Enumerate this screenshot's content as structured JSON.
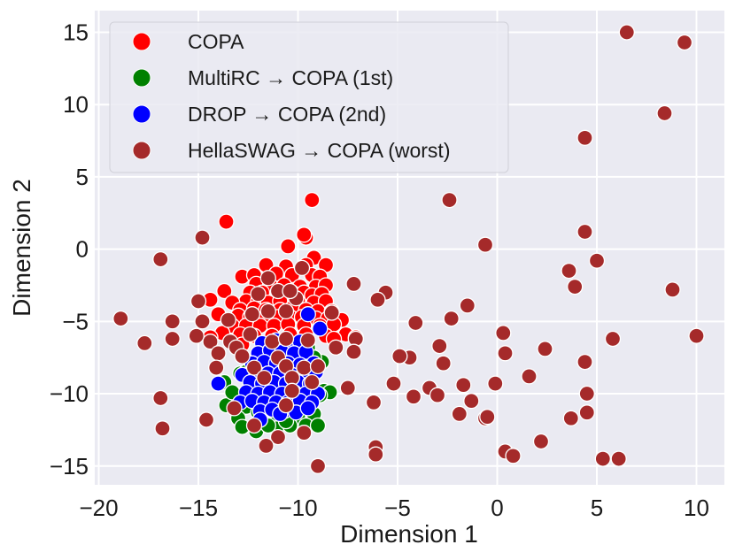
{
  "chart_data": {
    "type": "scatter",
    "title": "",
    "xlabel": "Dimension 1",
    "ylabel": "Dimension 2",
    "xlim": [
      -20.2,
      11.4
    ],
    "ylim": [
      -16.3,
      16.5
    ],
    "xticks": [
      -20,
      -15,
      -10,
      -5,
      0,
      5,
      10
    ],
    "yticks": [
      -15,
      -10,
      -5,
      0,
      5,
      10,
      15
    ],
    "xtick_labels": [
      "−20",
      "−15",
      "−10",
      "−5",
      "0",
      "5",
      "10"
    ],
    "ytick_labels": [
      "−15",
      "−10",
      "−5",
      "0",
      "5",
      "10",
      "15"
    ],
    "grid": true,
    "legend_position": "top-left",
    "series": [
      {
        "name": "COPA",
        "color": "#ff0000",
        "points": [
          [
            -9.3,
            3.4
          ],
          [
            -13.6,
            1.9
          ],
          [
            -9.6,
            0.8
          ],
          [
            -9.7,
            1.0
          ],
          [
            -10.5,
            0.2
          ],
          [
            -9.2,
            -0.6
          ],
          [
            -11.6,
            -1.1
          ],
          [
            -10.6,
            -1.2
          ],
          [
            -9.6,
            -1.1
          ],
          [
            -8.6,
            -1.1
          ],
          [
            -12.8,
            -1.9
          ],
          [
            -12.2,
            -1.8
          ],
          [
            -11.1,
            -1.7
          ],
          [
            -10.3,
            -1.8
          ],
          [
            -9.3,
            -1.8
          ],
          [
            -8.9,
            -1.9
          ],
          [
            -12.1,
            -2.4
          ],
          [
            -11.4,
            -2.5
          ],
          [
            -10.7,
            -2.5
          ],
          [
            -9.9,
            -2.6
          ],
          [
            -9.1,
            -2.6
          ],
          [
            -8.6,
            -2.5
          ],
          [
            -12.4,
            -3.0
          ],
          [
            -11.8,
            -3.0
          ],
          [
            -11.0,
            -3.1
          ],
          [
            -10.3,
            -3.0
          ],
          [
            -9.7,
            -3.0
          ],
          [
            -9.3,
            -3.2
          ],
          [
            -8.8,
            -3.1
          ],
          [
            -12.6,
            -3.6
          ],
          [
            -12.0,
            -3.6
          ],
          [
            -11.5,
            -3.7
          ],
          [
            -10.9,
            -3.6
          ],
          [
            -10.0,
            -3.6
          ],
          [
            -9.2,
            -3.7
          ],
          [
            -8.6,
            -3.6
          ],
          [
            -13.7,
            -2.9
          ],
          [
            -14.4,
            -3.5
          ],
          [
            -13.3,
            -3.7
          ],
          [
            -12.9,
            -4.2
          ],
          [
            -12.2,
            -4.1
          ],
          [
            -11.6,
            -4.2
          ],
          [
            -10.9,
            -4.2
          ],
          [
            -10.3,
            -4.1
          ],
          [
            -9.6,
            -4.2
          ],
          [
            -9.0,
            -4.3
          ],
          [
            -8.3,
            -4.3
          ],
          [
            -13.0,
            -4.6
          ],
          [
            -12.4,
            -4.7
          ],
          [
            -11.7,
            -4.8
          ],
          [
            -11.0,
            -4.7
          ],
          [
            -10.4,
            -4.7
          ],
          [
            -9.8,
            -4.7
          ],
          [
            -9.1,
            -4.8
          ],
          [
            -8.5,
            -4.8
          ],
          [
            -7.8,
            -4.9
          ],
          [
            -14.0,
            -4.5
          ],
          [
            -13.3,
            -5.3
          ],
          [
            -12.6,
            -5.3
          ],
          [
            -11.9,
            -5.3
          ],
          [
            -11.2,
            -5.3
          ],
          [
            -10.5,
            -5.2
          ],
          [
            -9.7,
            -5.3
          ],
          [
            -8.9,
            -5.3
          ],
          [
            -8.2,
            -5.2
          ],
          [
            -13.8,
            -5.8
          ],
          [
            -12.9,
            -5.9
          ],
          [
            -12.2,
            -6.0
          ],
          [
            -11.3,
            -6.0
          ],
          [
            -10.4,
            -5.9
          ],
          [
            -9.6,
            -5.9
          ],
          [
            -8.6,
            -6.0
          ],
          [
            -7.6,
            -5.9
          ],
          [
            -14.4,
            -6.1
          ],
          [
            -12.8,
            -6.6
          ],
          [
            -9.9,
            -6.6
          ],
          [
            -8.2,
            -6.2
          ],
          [
            -7.1,
            -6.1
          ]
        ]
      },
      {
        "name": "MultiRC → COPA (1st)",
        "color": "#008000",
        "points": [
          [
            -13.7,
            -9.2
          ],
          [
            -12.9,
            -8.6
          ],
          [
            -12.6,
            -8.5
          ],
          [
            -11.2,
            -7.4
          ],
          [
            -10.1,
            -7.1
          ],
          [
            -9.5,
            -6.8
          ],
          [
            -8.8,
            -7.8
          ],
          [
            -13.1,
            -10.1
          ],
          [
            -13.6,
            -10.8
          ],
          [
            -12.6,
            -10.9
          ],
          [
            -8.7,
            -9.8
          ],
          [
            -8.4,
            -9.9
          ],
          [
            -13.0,
            -11.7
          ],
          [
            -12.0,
            -11.3
          ],
          [
            -11.0,
            -11.5
          ],
          [
            -10.0,
            -11.6
          ],
          [
            -9.2,
            -11.4
          ],
          [
            -12.8,
            -12.3
          ],
          [
            -12.1,
            -12.6
          ],
          [
            -11.1,
            -12.4
          ],
          [
            -10.4,
            -12.2
          ],
          [
            -9.6,
            -12.2
          ],
          [
            -9.0,
            -12.2
          ],
          [
            -11.5,
            -12.2
          ],
          [
            -10.6,
            -11.9
          ],
          [
            -12.3,
            -9.3
          ],
          [
            -9.4,
            -8.6
          ],
          [
            -8.9,
            -10.1
          ],
          [
            -11.7,
            -8.1
          ],
          [
            -10.8,
            -8.0
          ],
          [
            -9.9,
            -7.7
          ],
          [
            -9.2,
            -7.5
          ],
          [
            -12.2,
            -8.6
          ],
          [
            -13.3,
            -9.9
          ]
        ]
      },
      {
        "name": "DROP → COPA (2nd)",
        "color": "#0000ff",
        "points": [
          [
            -9.5,
            -4.5
          ],
          [
            -8.9,
            -5.5
          ],
          [
            -11.8,
            -6.5
          ],
          [
            -11.1,
            -6.3
          ],
          [
            -10.5,
            -6.5
          ],
          [
            -9.9,
            -6.4
          ],
          [
            -12.0,
            -7.2
          ],
          [
            -11.4,
            -7.0
          ],
          [
            -10.8,
            -7.1
          ],
          [
            -10.2,
            -7.2
          ],
          [
            -9.6,
            -7.1
          ],
          [
            -12.3,
            -7.9
          ],
          [
            -11.7,
            -7.8
          ],
          [
            -11.1,
            -7.9
          ],
          [
            -10.5,
            -7.9
          ],
          [
            -9.9,
            -8.0
          ],
          [
            -9.2,
            -7.9
          ],
          [
            -12.8,
            -8.7
          ],
          [
            -12.1,
            -8.5
          ],
          [
            -11.5,
            -8.6
          ],
          [
            -10.9,
            -8.6
          ],
          [
            -10.3,
            -8.7
          ],
          [
            -9.7,
            -8.6
          ],
          [
            -9.1,
            -8.5
          ],
          [
            -14.0,
            -9.3
          ],
          [
            -12.4,
            -9.2
          ],
          [
            -11.8,
            -9.3
          ],
          [
            -11.2,
            -9.2
          ],
          [
            -10.6,
            -9.3
          ],
          [
            -10.0,
            -9.2
          ],
          [
            -9.4,
            -9.3
          ],
          [
            -12.6,
            -9.9
          ],
          [
            -12.0,
            -10.0
          ],
          [
            -11.4,
            -9.9
          ],
          [
            -10.8,
            -10.0
          ],
          [
            -10.2,
            -9.9
          ],
          [
            -9.6,
            -10.0
          ],
          [
            -9.0,
            -10.0
          ],
          [
            -12.9,
            -10.6
          ],
          [
            -12.3,
            -10.5
          ],
          [
            -11.7,
            -10.6
          ],
          [
            -11.1,
            -10.6
          ],
          [
            -10.5,
            -10.6
          ],
          [
            -9.9,
            -10.5
          ],
          [
            -9.3,
            -10.6
          ],
          [
            -11.9,
            -11.2
          ],
          [
            -11.3,
            -11.1
          ],
          [
            -10.7,
            -11.2
          ],
          [
            -10.1,
            -11.3
          ],
          [
            -9.5,
            -11.0
          ],
          [
            -11.9,
            -11.8
          ],
          [
            -10.9,
            -11.4
          ]
        ]
      },
      {
        "name": "HellaSWAG → COPA (worst)",
        "color": "#a52a2a",
        "points": [
          [
            6.5,
            15.0
          ],
          [
            9.4,
            14.3
          ],
          [
            8.4,
            9.4
          ],
          [
            4.4,
            7.7
          ],
          [
            -2.4,
            3.4
          ],
          [
            4.4,
            1.2
          ],
          [
            -0.6,
            0.3
          ],
          [
            -14.8,
            0.8
          ],
          [
            -16.9,
            -0.7
          ],
          [
            5.0,
            -0.8
          ],
          [
            3.6,
            -1.5
          ],
          [
            -7.2,
            -2.4
          ],
          [
            3.9,
            -2.6
          ],
          [
            8.8,
            -2.8
          ],
          [
            -5.6,
            -3.0
          ],
          [
            -6.0,
            -3.5
          ],
          [
            -15.0,
            -3.6
          ],
          [
            -1.5,
            -3.9
          ],
          [
            -18.9,
            -4.8
          ],
          [
            -16.3,
            -5.0
          ],
          [
            -4.1,
            -5.1
          ],
          [
            -2.3,
            -4.8
          ],
          [
            -14.8,
            -5.0
          ],
          [
            -13.5,
            -4.9
          ],
          [
            -12.3,
            -4.5
          ],
          [
            -11.5,
            -4.3
          ],
          [
            -10.6,
            -4.3
          ],
          [
            -8.3,
            -4.4
          ],
          [
            -10.1,
            -3.4
          ],
          [
            -11.0,
            -2.9
          ],
          [
            -9.8,
            -1.3
          ],
          [
            -11.5,
            -2.0
          ],
          [
            -12.0,
            -3.1
          ],
          [
            -10.4,
            -2.9
          ],
          [
            0.3,
            -5.8
          ],
          [
            5.8,
            -6.2
          ],
          [
            10.0,
            -6.0
          ],
          [
            -17.7,
            -6.5
          ],
          [
            -16.3,
            -6.2
          ],
          [
            -15.1,
            -6.0
          ],
          [
            -14.4,
            -6.4
          ],
          [
            -13.4,
            -6.4
          ],
          [
            -12.4,
            -5.9
          ],
          [
            -11.3,
            -6.4
          ],
          [
            -10.6,
            -6.2
          ],
          [
            -9.5,
            -6.3
          ],
          [
            -7.1,
            -6.2
          ],
          [
            -8.1,
            -6.8
          ],
          [
            -7.2,
            -7.1
          ],
          [
            -2.9,
            -6.7
          ],
          [
            2.4,
            -6.9
          ],
          [
            0.4,
            -7.2
          ],
          [
            -13.1,
            -6.8
          ],
          [
            -14.0,
            -7.2
          ],
          [
            -12.8,
            -7.4
          ],
          [
            -11.0,
            -7.5
          ],
          [
            -4.4,
            -7.5
          ],
          [
            -4.9,
            -7.4
          ],
          [
            -2.7,
            -7.9
          ],
          [
            4.4,
            -7.8
          ],
          [
            -14.1,
            -8.2
          ],
          [
            -12.2,
            -8.2
          ],
          [
            -10.6,
            -8.1
          ],
          [
            -9.7,
            -8.2
          ],
          [
            -9.0,
            -8.1
          ],
          [
            1.6,
            -8.8
          ],
          [
            -11.7,
            -8.9
          ],
          [
            -10.3,
            -8.9
          ],
          [
            -9.3,
            -9.2
          ],
          [
            -5.2,
            -9.3
          ],
          [
            -3.4,
            -9.6
          ],
          [
            -1.7,
            -9.4
          ],
          [
            -0.1,
            -9.3
          ],
          [
            -7.5,
            -9.6
          ],
          [
            -10.3,
            -9.8
          ],
          [
            -3.0,
            -10.1
          ],
          [
            -4.2,
            -10.2
          ],
          [
            -1.3,
            -10.5
          ],
          [
            4.5,
            -10.0
          ],
          [
            -16.9,
            -10.3
          ],
          [
            -6.2,
            -10.6
          ],
          [
            -10.6,
            -10.8
          ],
          [
            -13.2,
            -11.0
          ],
          [
            -1.9,
            -11.4
          ],
          [
            -0.6,
            -11.7
          ],
          [
            -0.5,
            -11.6
          ],
          [
            3.7,
            -11.7
          ],
          [
            4.5,
            -11.3
          ],
          [
            -14.6,
            -11.8
          ],
          [
            -16.8,
            -12.4
          ],
          [
            -9.7,
            -12.7
          ],
          [
            -11.0,
            -13.0
          ],
          [
            2.2,
            -13.3
          ],
          [
            -11.6,
            -13.6
          ],
          [
            -6.1,
            -13.7
          ],
          [
            -6.1,
            -14.2
          ],
          [
            0.4,
            -14.0
          ],
          [
            0.8,
            -14.3
          ],
          [
            5.3,
            -14.5
          ],
          [
            6.1,
            -14.5
          ],
          [
            -9.0,
            -15.0
          ],
          [
            -12.2,
            -12.2
          ]
        ]
      }
    ]
  }
}
